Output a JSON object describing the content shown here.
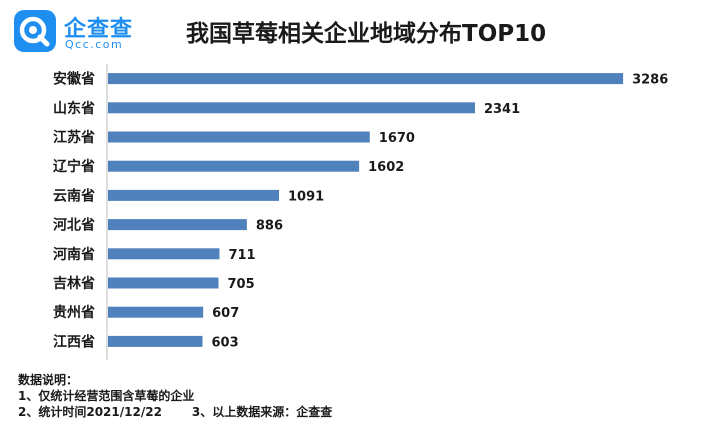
{
  "logo": {
    "icon": "qcc-q-icon",
    "name": "企查查",
    "domain": "Qcc.com",
    "brand_color": "#1f8ef1"
  },
  "chart_data": {
    "type": "bar",
    "orientation": "horizontal",
    "title": "我国草莓相关企业地域分布TOP10",
    "categories": [
      "安徽省",
      "山东省",
      "江苏省",
      "辽宁省",
      "云南省",
      "河北省",
      "河南省",
      "吉林省",
      "贵州省",
      "江西省"
    ],
    "values": [
      3286,
      2341,
      1670,
      1602,
      1091,
      886,
      711,
      705,
      607,
      603
    ],
    "xlim": [
      0,
      3700
    ],
    "bar_color": "#4f81bd",
    "grid": false,
    "data_labels": true
  },
  "notes": {
    "heading": "数据说明：",
    "line1": "1、仅统计经营范围含草莓的企业",
    "line2a": "2、统计时间2021/12/22",
    "line2b": "3、以上数据来源：企查查"
  }
}
